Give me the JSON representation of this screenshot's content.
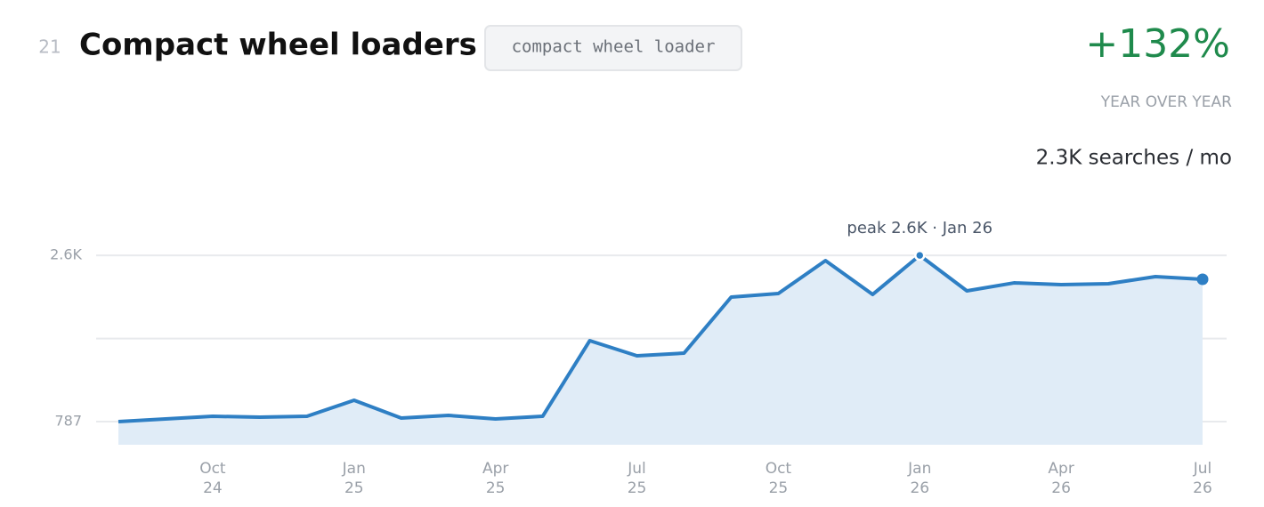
{
  "chart_data": {
    "type": "line",
    "rank": "21",
    "title": "Compact wheel loaders",
    "tag": "compact wheel loader",
    "change": "+132%",
    "change_label": "YEAR OVER YEAR",
    "volume": "2.3K searches / mo",
    "annotation": "peak 2.6K · Jan 26",
    "x": [
      "Aug 24",
      "Sep 24",
      "Oct 24",
      "Nov 24",
      "Dec 24",
      "Jan 25",
      "Feb 25",
      "Mar 25",
      "Apr 25",
      "May 25",
      "Jun 25",
      "Jul 25",
      "Aug 25",
      "Sep 25",
      "Oct 25",
      "Nov 25",
      "Dec 25",
      "Jan 26",
      "Feb 26",
      "Mar 26",
      "Apr 26",
      "May 26",
      "Jun 26",
      "Jul 26"
    ],
    "series": [
      {
        "color": "#2e7fc4",
        "values": [
          787,
          816,
          845,
          836,
          845,
          1020,
          826,
          855,
          816,
          845,
          1670,
          1505,
          1534,
          2145,
          2184,
          2543,
          2174,
          2600,
          2213,
          2300,
          2281,
          2291,
          2368,
          2339
        ]
      }
    ],
    "xticks": [
      {
        "value": "Oct 24",
        "label": [
          "Oct",
          "24"
        ]
      },
      {
        "value": "Jan 25",
        "label": [
          "Jan",
          "25"
        ]
      },
      {
        "value": "Apr 25",
        "label": [
          "Apr",
          "25"
        ]
      },
      {
        "value": "Jul 25",
        "label": [
          "Jul",
          "25"
        ]
      },
      {
        "value": "Oct 25",
        "label": [
          "Oct",
          "25"
        ]
      },
      {
        "value": "Jan 26",
        "label": [
          "Jan",
          "26"
        ]
      },
      {
        "value": "Apr 26",
        "label": [
          "Apr",
          "26"
        ]
      },
      {
        "value": "Jul 26",
        "label": [
          "Jul",
          "26"
        ]
      }
    ],
    "ylim": [
      535,
      2960
    ],
    "yticks": [
      787,
      {
        "value": 2600,
        "label": "2.6K"
      }
    ],
    "gridlines": [
      787,
      1693.5,
      2600
    ],
    "area_color": "#e0ecf7",
    "peak_index": 17
  }
}
